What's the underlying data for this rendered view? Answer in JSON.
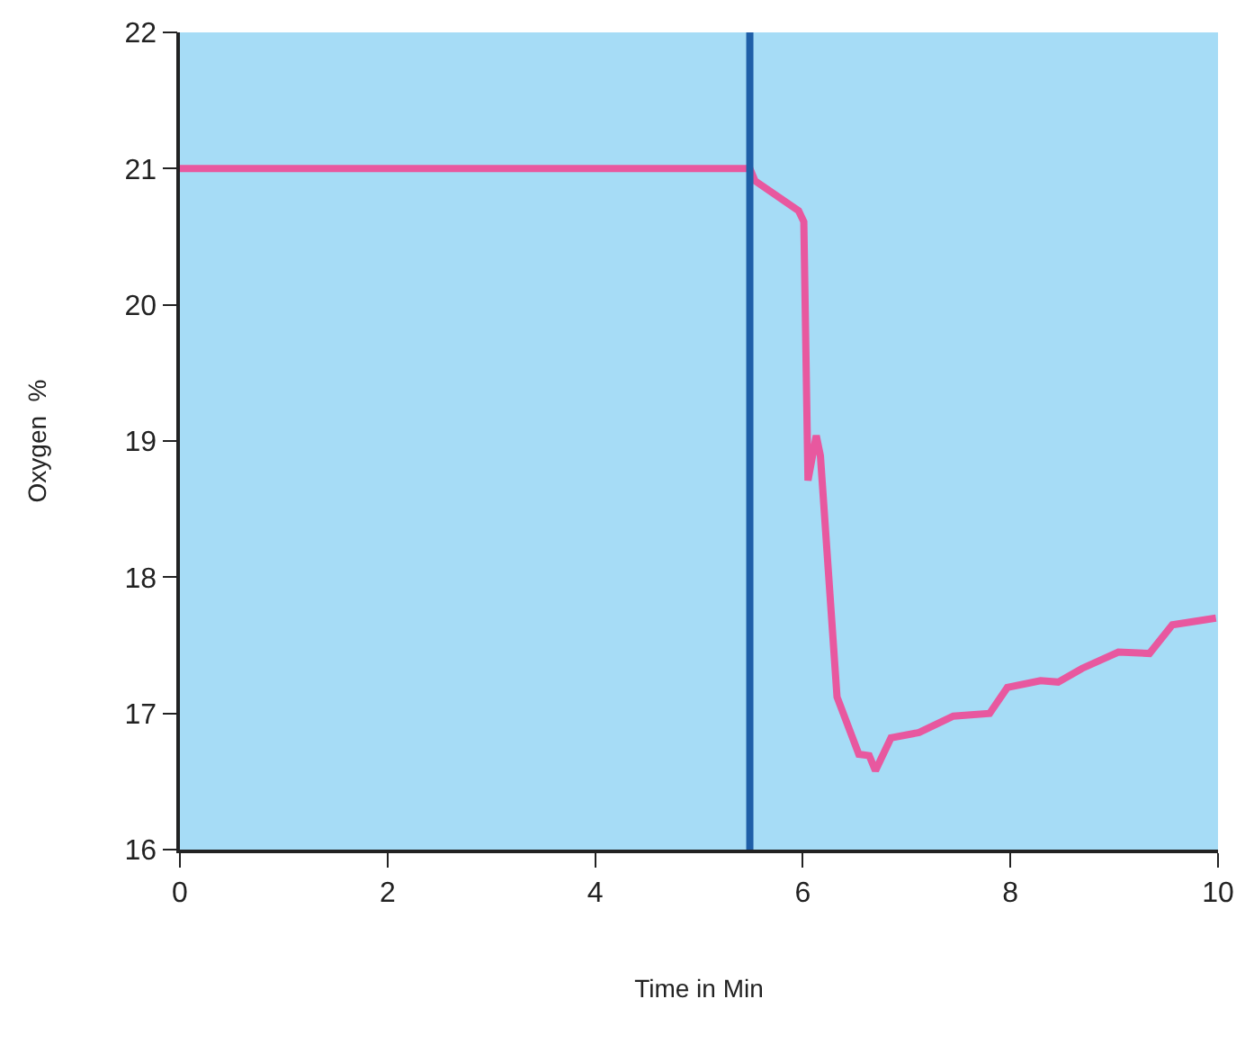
{
  "chart_data": {
    "type": "line",
    "xlabel": "Time in Min",
    "ylabel": "Oxygen  %",
    "xlim": [
      0,
      10
    ],
    "xticks": [
      0,
      2,
      4,
      6,
      8,
      10
    ],
    "ylim": [
      16,
      22
    ],
    "yticks": [
      16,
      17,
      18,
      19,
      20,
      21,
      22
    ],
    "grid": false,
    "marker": "none",
    "line_style": "solid",
    "series": [
      {
        "color": "#e8589f",
        "x": [
          0,
          5.49,
          5.54,
          5.96,
          6.01,
          6.05,
          6.13,
          6.17,
          6.33,
          6.54,
          6.64,
          6.7,
          6.85,
          7.12,
          7.45,
          7.8,
          7.97,
          8.29,
          8.46,
          8.69,
          9.04,
          9.34,
          9.56,
          9.98
        ],
        "values": [
          21.0,
          21.0,
          20.91,
          20.69,
          20.61,
          18.71,
          19.04,
          18.89,
          17.12,
          16.7,
          16.69,
          16.58,
          16.82,
          16.86,
          16.98,
          17.0,
          17.19,
          17.24,
          17.23,
          17.33,
          17.45,
          17.44,
          17.65,
          17.7
        ]
      }
    ],
    "ref_lines": [
      {
        "axis": "x",
        "value": 5.49,
        "color": "#1f5fa8",
        "line_style": "solid"
      }
    ]
  }
}
